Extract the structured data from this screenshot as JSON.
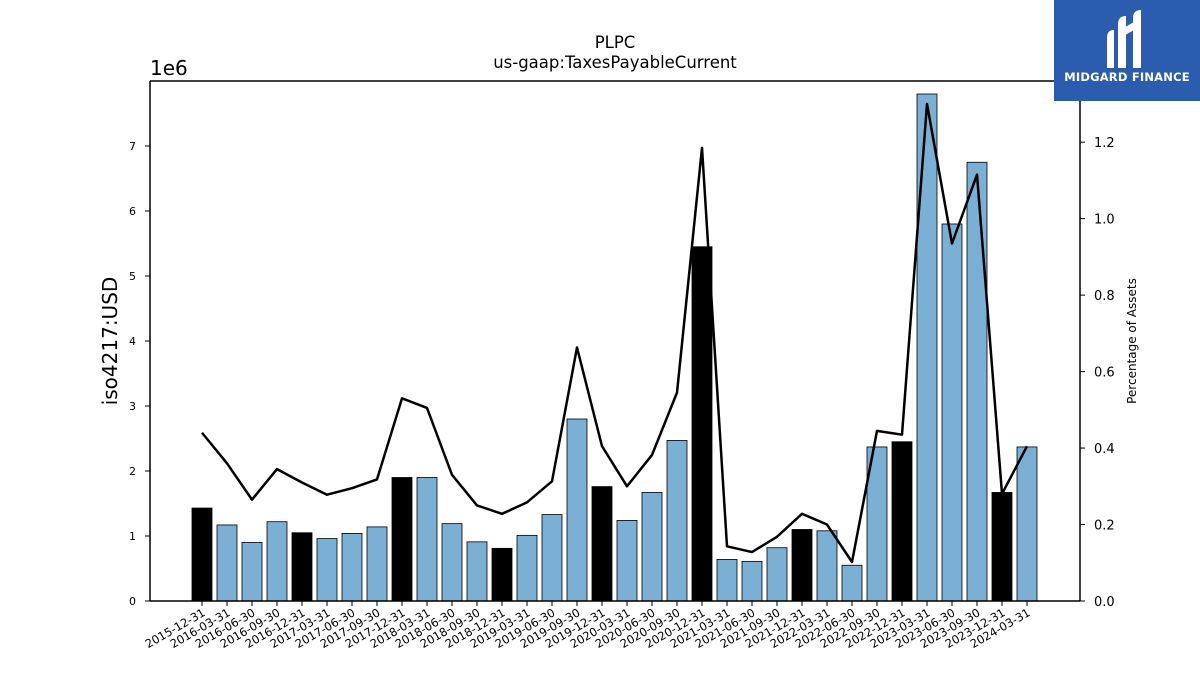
{
  "chart_data": {
    "type": "bar",
    "title": "PLPC",
    "subtitle": "us-gaap:TaxesPayableCurrent",
    "ylabel": "iso4217:USD",
    "y_multiplier": "1e6",
    "y2label": "Percentage of Assets",
    "ylim": [
      0,
      8000000
    ],
    "y2lim": [
      0,
      1.36
    ],
    "y_ticks": [
      0,
      1,
      2,
      3,
      4,
      5,
      6,
      7
    ],
    "y2_ticks": [
      "0.0",
      "0.2",
      "0.4",
      "0.6",
      "0.8",
      "1.0",
      "1.2"
    ],
    "categories": [
      "2015-12-31",
      "2016-03-31",
      "2016-06-30",
      "2016-09-30",
      "2016-12-31",
      "2017-03-31",
      "2017-06-30",
      "2017-09-30",
      "2017-12-31",
      "2018-03-31",
      "2018-06-30",
      "2018-09-30",
      "2018-12-31",
      "2019-03-31",
      "2019-06-30",
      "2019-09-30",
      "2019-12-31",
      "2020-03-31",
      "2020-06-30",
      "2020-09-30",
      "2020-12-31",
      "2021-03-31",
      "2021-06-30",
      "2021-09-30",
      "2021-12-31",
      "2022-03-31",
      "2022-06-30",
      "2022-09-30",
      "2022-12-31",
      "2023-03-31",
      "2023-06-30",
      "2023-09-30",
      "2023-12-31",
      "2024-03-31"
    ],
    "series": [
      {
        "type": "bar",
        "values": [
          1430000,
          1170000,
          900000,
          1220000,
          1050000,
          960000,
          1040000,
          1140000,
          1900000,
          1900000,
          1190000,
          910000,
          810000,
          1010000,
          1330000,
          2800000,
          1760000,
          1240000,
          1670000,
          2470000,
          5450000,
          640000,
          610000,
          820000,
          1100000,
          1080000,
          550000,
          2370000,
          2450000,
          7800000,
          5800000,
          6750000,
          1670000,
          2370000
        ],
        "annual": [
          true,
          false,
          false,
          false,
          true,
          false,
          false,
          false,
          true,
          false,
          false,
          false,
          true,
          false,
          false,
          false,
          true,
          false,
          false,
          false,
          true,
          false,
          false,
          false,
          true,
          false,
          false,
          false,
          true,
          false,
          false,
          false,
          true,
          false
        ]
      },
      {
        "type": "line",
        "axis": "secondary",
        "values": [
          0.44,
          0.36,
          0.265,
          0.345,
          0.31,
          0.278,
          0.295,
          0.318,
          0.53,
          0.505,
          0.33,
          0.25,
          0.228,
          0.258,
          0.313,
          0.663,
          0.405,
          0.3,
          0.382,
          0.545,
          1.185,
          0.143,
          0.128,
          0.168,
          0.228,
          0.2,
          0.102,
          0.445,
          0.435,
          1.3,
          0.935,
          1.115,
          0.28,
          0.405
        ]
      }
    ],
    "colors": {
      "annual_bar": "#000000",
      "quarter_bar": "#7bafd4",
      "line": "#000000"
    },
    "grid": false
  },
  "logo": {
    "text": "MIDGARD FINANCE",
    "color": "#2b5cad"
  }
}
